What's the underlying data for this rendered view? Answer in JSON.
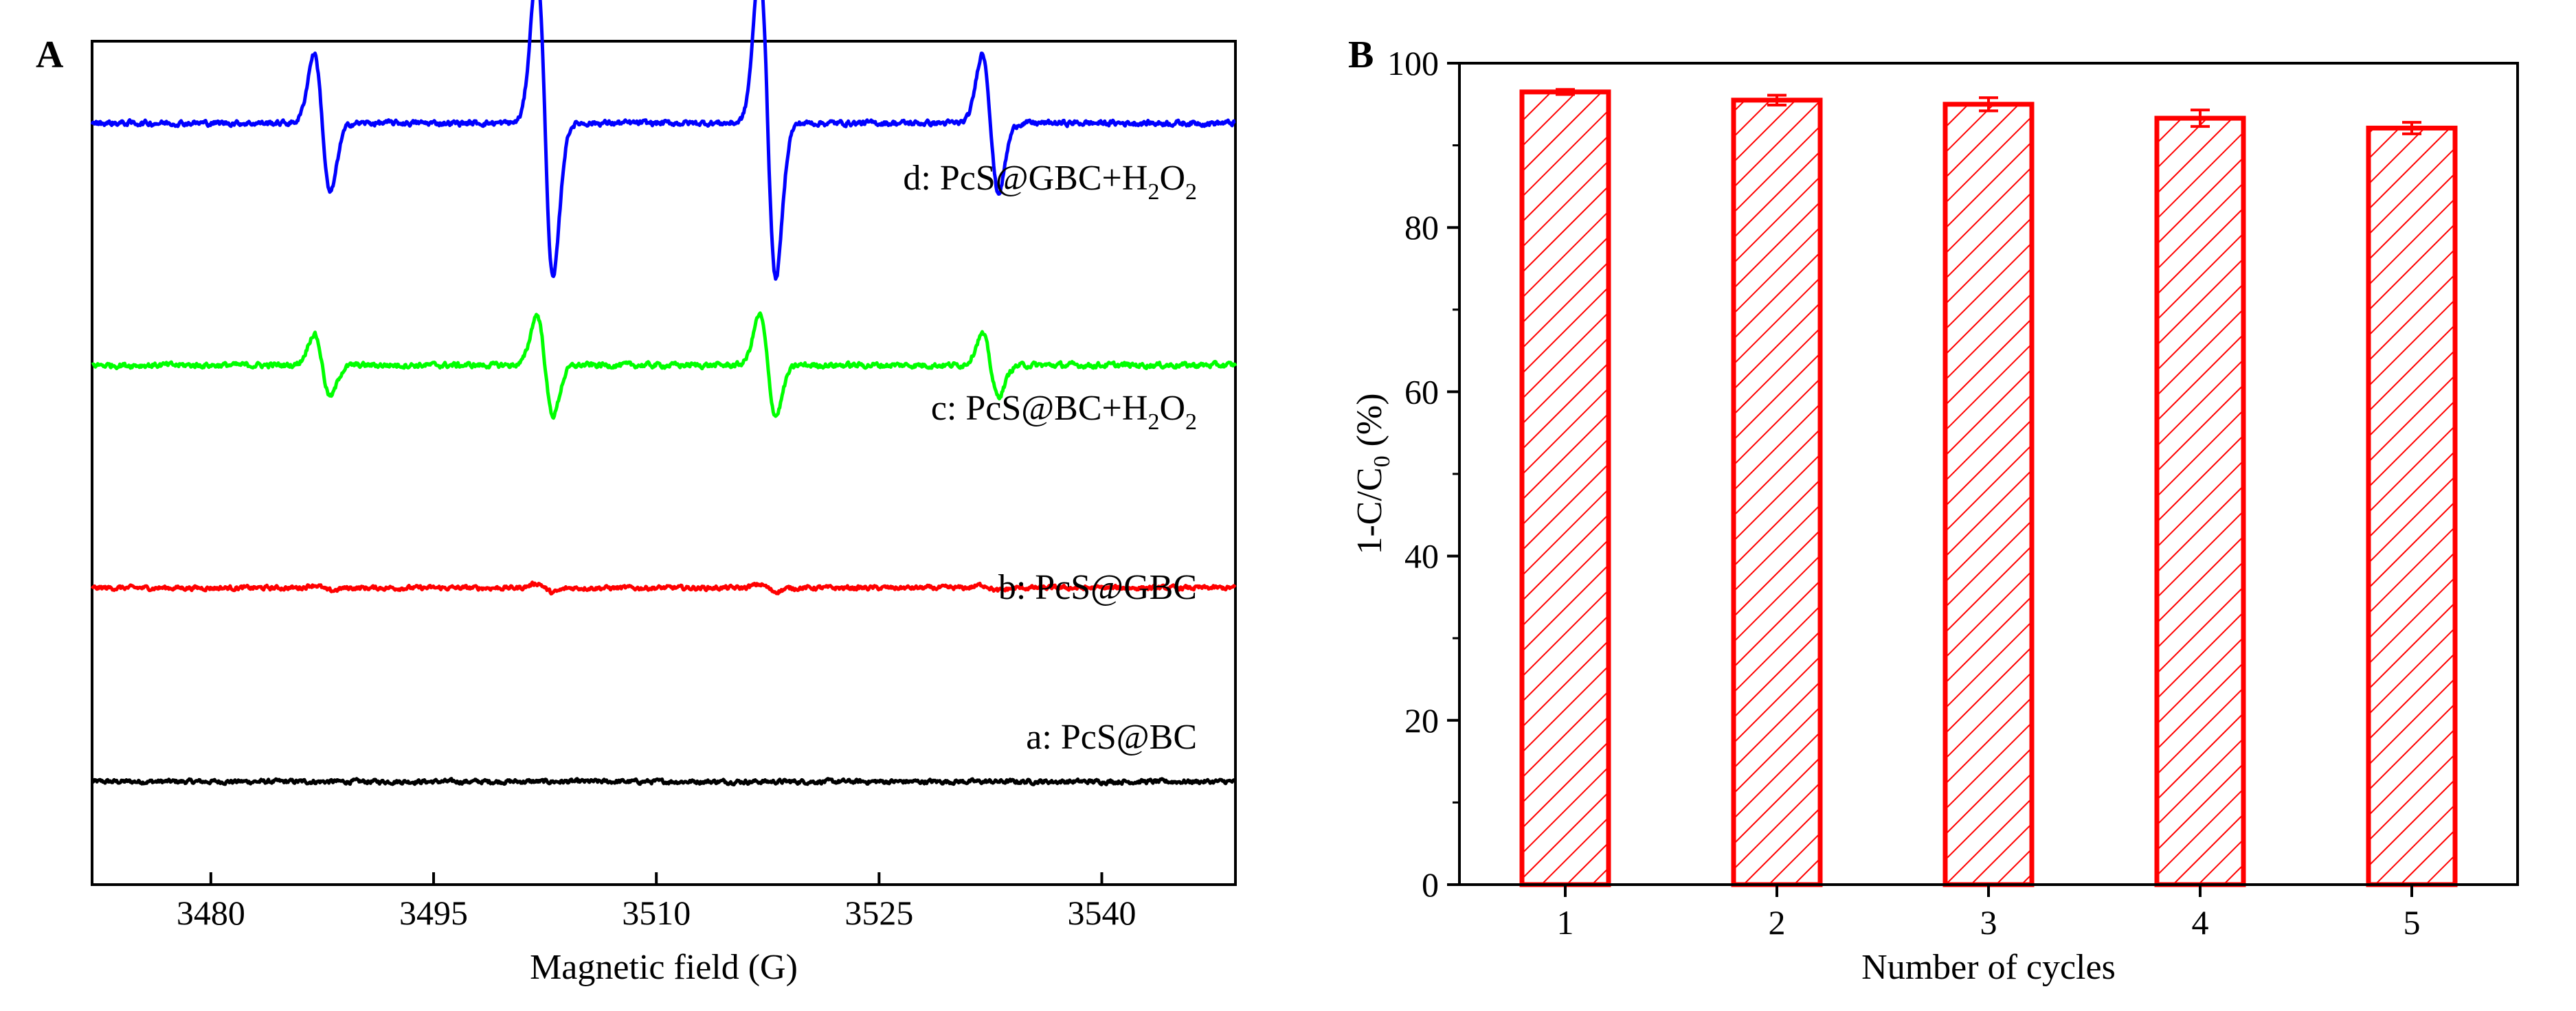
{
  "chart_data": [
    {
      "type": "line",
      "panel_label": "A",
      "title": "",
      "xlabel": "Magnetic field (G)",
      "ylabel": "",
      "xlim": [
        3472,
        3549
      ],
      "xticks": [
        3480,
        3495,
        3510,
        3525,
        3540
      ],
      "y_axis_ticks_shown": false,
      "grid": false,
      "series": [
        {
          "name": "a",
          "label": "a: PcS@BC",
          "color": "#000000",
          "offset": 0.0,
          "amplitude": 0.0,
          "noise": 0.018,
          "peak_positions": [
            3487.5,
            3502.5,
            3517.5,
            3532.5
          ],
          "peak_relative": [
            0.02,
            0.02,
            0.02,
            0.02
          ]
        },
        {
          "name": "b",
          "label": "b: PcS@GBC",
          "color": "#ff0000",
          "offset": 1.0,
          "amplitude": 0.03,
          "noise": 0.018,
          "peak_positions": [
            3487.5,
            3502.5,
            3517.5,
            3532.5
          ],
          "peak_relative": [
            0.5,
            0.8,
            0.6,
            0.5
          ]
        },
        {
          "name": "c",
          "label": "c: PcS@BC+H2O2",
          "label_parts": {
            "main": "c: PcS@BC+H",
            "sub1": "2",
            "mid": "O",
            "sub2": "2"
          },
          "color": "#00ff00",
          "offset": 2.15,
          "amplitude": 0.26,
          "noise": 0.022,
          "peak_positions": [
            3487.5,
            3502.5,
            3517.5,
            3532.5
          ],
          "peak_relative": [
            0.62,
            1.0,
            1.0,
            0.62
          ]
        },
        {
          "name": "d",
          "label": "d: PcS@GBC+H2O2",
          "label_parts": {
            "main": "d: PcS@GBC+H",
            "sub1": "2",
            "mid": "O",
            "sub2": "2"
          },
          "color": "#0000ff",
          "offset": 3.4,
          "amplitude": 0.8,
          "noise": 0.022,
          "peak_positions": [
            3487.5,
            3502.5,
            3517.5,
            3532.5
          ],
          "peak_relative": [
            0.45,
            1.0,
            1.0,
            0.45
          ]
        }
      ]
    },
    {
      "type": "bar",
      "panel_label": "B",
      "title": "",
      "xlabel": "Number of cycles",
      "ylabel": "1-C/C0 (%)",
      "ylabel_parts": {
        "main": "1-C/C",
        "sub": "0",
        "tail": " (%)"
      },
      "categories": [
        "1",
        "2",
        "3",
        "4",
        "5"
      ],
      "values": [
        96.5,
        95.5,
        95.0,
        93.3,
        92.1
      ],
      "errors": [
        0.3,
        0.6,
        0.8,
        1.0,
        0.7
      ],
      "ylim": [
        0,
        100
      ],
      "yticks": [
        0,
        20,
        40,
        60,
        80,
        100
      ],
      "bar_color": "#ff0000",
      "bar_fill": "hatched",
      "grid": false
    }
  ]
}
